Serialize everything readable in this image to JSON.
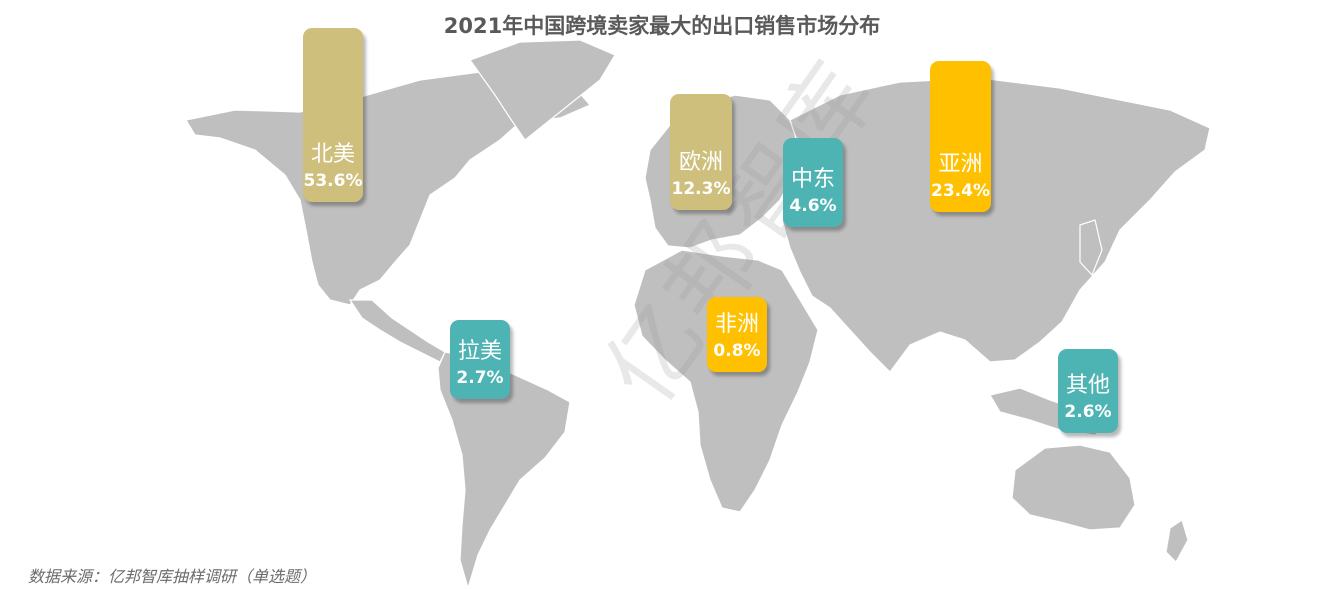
{
  "title": "2021年中国跨境卖家最大的出口销售市场分布",
  "watermark": "亿邦智库",
  "source": "数据来源：亿邦智库抽样调研（单选题）",
  "colors": {
    "tan": "#cfbf7d",
    "gold": "#ffc000",
    "teal": "#4db3b3",
    "land": "#bfbfbf"
  },
  "chart_data": {
    "type": "bar",
    "categories": [
      "北美",
      "欧洲",
      "中东",
      "亚洲",
      "拉美",
      "非洲",
      "其他"
    ],
    "values": [
      53.6,
      12.3,
      4.6,
      23.4,
      2.7,
      0.8,
      2.6
    ],
    "labels": [
      "53.6%",
      "12.3%",
      "4.6%",
      "23.4%",
      "2.7%",
      "0.8%",
      "2.6%"
    ],
    "title": "2021年中国跨境卖家最大的出口销售市场分布",
    "xlabel": "",
    "ylabel": ""
  }
}
